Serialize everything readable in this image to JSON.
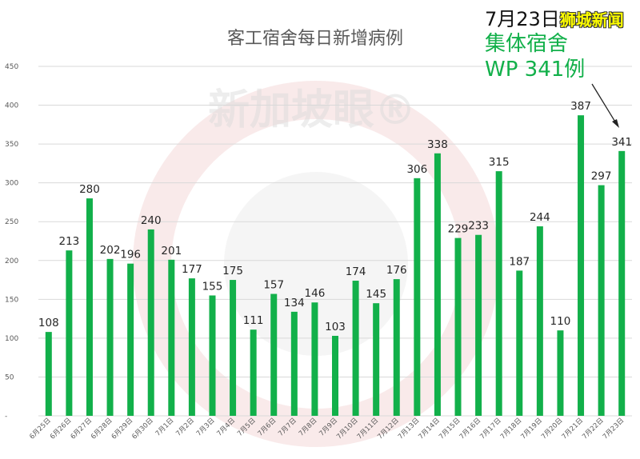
{
  "colors": {
    "bar": "#12b04a",
    "grid": "#d9d9d9",
    "watermark": "#e8e8e8"
  },
  "watermark": {
    "text": "新加坡眼®"
  },
  "annotation": {
    "date": "7月23日",
    "brand": "狮城新闻",
    "line1": "集体宿舍",
    "line2": "WP 341例"
  },
  "chart_data": {
    "type": "bar",
    "title": "客工宿舍每日新增病例",
    "xlabel": "",
    "ylabel": "",
    "ylim": [
      0,
      450
    ],
    "yticks": [
      "-",
      "50",
      "100",
      "150",
      "200",
      "250",
      "300",
      "350",
      "400",
      "450"
    ],
    "grid": true,
    "legend": "none",
    "categories": [
      "6月25日",
      "6月26日",
      "6月27日",
      "6月28日",
      "6月29日",
      "6月30日",
      "7月1日",
      "7月2日",
      "7月3日",
      "7月4日",
      "7月5日",
      "7月6日",
      "7月7日",
      "7月8日",
      "7月9日",
      "7月10日",
      "7月11日",
      "7月12日",
      "7月13日",
      "7月14日",
      "7月15日",
      "7月16日",
      "7月17日",
      "7月18日",
      "7月19日",
      "7月20日",
      "7月21日",
      "7月22日",
      "7月23日"
    ],
    "values": [
      108,
      213,
      280,
      202,
      196,
      240,
      201,
      177,
      155,
      175,
      111,
      157,
      134,
      146,
      103,
      174,
      145,
      176,
      306,
      338,
      229,
      233,
      315,
      187,
      244,
      110,
      387,
      297,
      341
    ]
  }
}
